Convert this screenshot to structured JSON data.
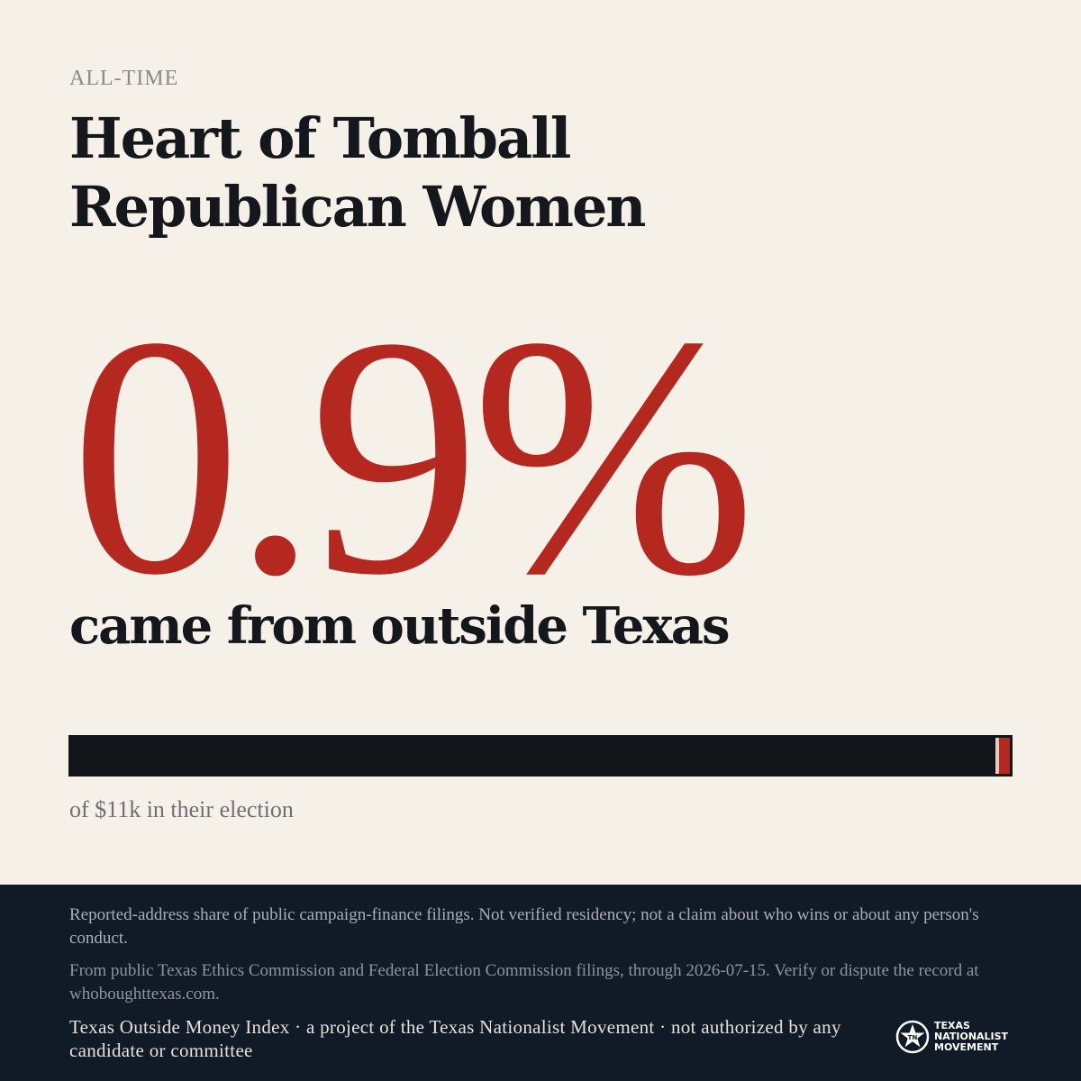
{
  "header": {
    "eyebrow": "ALL-TIME",
    "title": "Heart of Tomball Republican Women"
  },
  "headline": {
    "percent_text": "0.9%",
    "percent_value": 0.9,
    "subhead": "came from outside Texas"
  },
  "bar": {
    "fill_percent": 0.9,
    "caption": "of $11k in their election"
  },
  "footer": {
    "disclaimer_1": "Reported-address share of public campaign-finance filings. Not verified residency; not a claim about who wins or about any person's conduct.",
    "disclaimer_2": "From public Texas Ethics Commission and Federal Election Commission filings, through 2026-07-15. Verify or dispute the record at whoboughttexas.com.",
    "credit": "Texas Outside Money Index · a project of the Texas Nationalist Movement · not authorized by any candidate or committee",
    "logo": {
      "icon": "star-seal-icon",
      "line1": "TEXAS",
      "line2": "NATIONALIST",
      "line3": "MOVEMENT"
    }
  },
  "colors": {
    "background": "#f5f0e8",
    "accent": "#b5281f",
    "ink": "#14171c",
    "footer": "#111b27"
  }
}
